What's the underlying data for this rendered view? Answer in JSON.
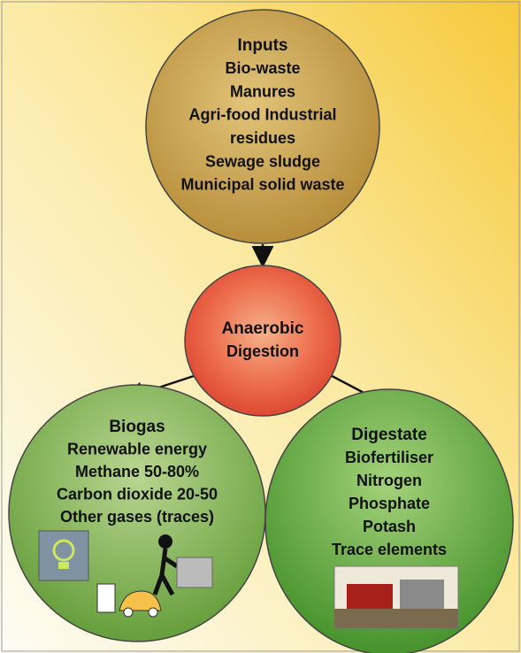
{
  "nodes": [
    {
      "title": "Inputs",
      "lines": [
        "Bio-waste",
        "Manures",
        "Agri-food Industrial",
        "residues",
        "Sewage sludge",
        "Municipal solid waste"
      ]
    },
    {
      "title": "Anaerobic",
      "lines": [
        "Digestion"
      ]
    },
    {
      "title": "Biogas",
      "lines": [
        "Renewable energy",
        "Methane 50-80%",
        "Carbon dioxide 20-50",
        "Other gases (traces)"
      ]
    },
    {
      "title": "Digestate",
      "lines": [
        "Biofertiliser",
        "Nitrogen",
        "Phosphate",
        "Potash",
        "Trace elements"
      ]
    }
  ]
}
